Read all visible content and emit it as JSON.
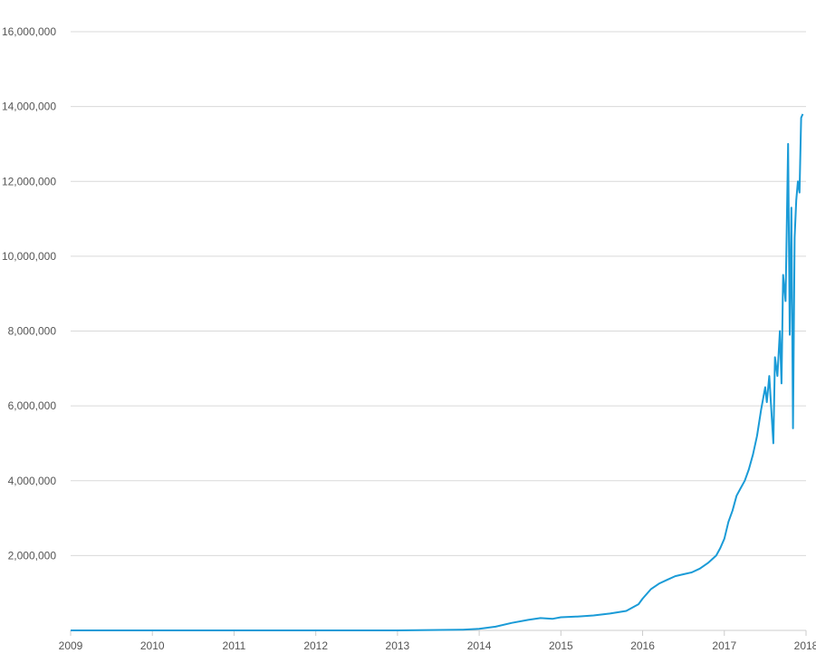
{
  "chart_data": {
    "type": "line",
    "title": "",
    "xlabel": "",
    "ylabel": "",
    "grid": "horizontal",
    "legend": "none",
    "colors": {
      "line": "#1a9bd7",
      "grid": "#d9d9d9",
      "axis": "#cccccc",
      "label": "#555555"
    },
    "xlim": [
      2009.0,
      2018.0
    ],
    "ylim": [
      0,
      16000000
    ],
    "x_ticks": [
      {
        "value": 2009,
        "label": "2009"
      },
      {
        "value": 2010,
        "label": "2010"
      },
      {
        "value": 2011,
        "label": "2011"
      },
      {
        "value": 2012,
        "label": "2012"
      },
      {
        "value": 2013,
        "label": "2013"
      },
      {
        "value": 2014,
        "label": "2014"
      },
      {
        "value": 2015,
        "label": "2015"
      },
      {
        "value": 2016,
        "label": "2016"
      },
      {
        "value": 2017,
        "label": "2017"
      },
      {
        "value": 2018,
        "label": "2018"
      }
    ],
    "y_ticks": [
      {
        "value": 2000000,
        "label": "2,000,000"
      },
      {
        "value": 4000000,
        "label": "4,000,000"
      },
      {
        "value": 6000000,
        "label": "6,000,000"
      },
      {
        "value": 8000000,
        "label": "8,000,000"
      },
      {
        "value": 10000000,
        "label": "10,000,000"
      },
      {
        "value": 12000000,
        "label": "12,000,000"
      },
      {
        "value": 14000000,
        "label": "14,000,000"
      },
      {
        "value": 16000000,
        "label": "16,000,000"
      }
    ],
    "series": [
      {
        "x": [
          2009.0,
          2010.0,
          2011.0,
          2012.0,
          2013.0,
          2013.8,
          2014.0,
          2014.2,
          2014.4,
          2014.6,
          2014.75,
          2014.9,
          2015.0,
          2015.2,
          2015.4,
          2015.6,
          2015.8,
          2015.95,
          2016.0,
          2016.1,
          2016.2,
          2016.3,
          2016.4,
          2016.5,
          2016.6,
          2016.7,
          2016.8,
          2016.9,
          2016.95,
          2017.0,
          2017.05,
          2017.1,
          2017.15,
          2017.2,
          2017.25,
          2017.3,
          2017.35,
          2017.4,
          2017.45,
          2017.5,
          2017.52,
          2017.55,
          2017.6,
          2017.62,
          2017.65,
          2017.68,
          2017.7,
          2017.72,
          2017.75,
          2017.78,
          2017.8,
          2017.82,
          2017.84,
          2017.86,
          2017.88,
          2017.9,
          2017.92,
          2017.94,
          2017.96
        ],
        "y": [
          0,
          0,
          0,
          0,
          0,
          20000,
          40000,
          100000,
          200000,
          280000,
          330000,
          310000,
          350000,
          370000,
          400000,
          450000,
          520000,
          700000,
          850000,
          1100000,
          1250000,
          1350000,
          1450000,
          1500000,
          1550000,
          1650000,
          1800000,
          2000000,
          2200000,
          2450000,
          2900000,
          3200000,
          3600000,
          3800000,
          4000000,
          4300000,
          4700000,
          5200000,
          5900000,
          6500000,
          6100000,
          6800000,
          5000000,
          7300000,
          6800000,
          8000000,
          6600000,
          9500000,
          8800000,
          13000000,
          7900000,
          11300000,
          5400000,
          10500000,
          11500000,
          12000000,
          11700000,
          13700000,
          13800000
        ]
      }
    ]
  }
}
